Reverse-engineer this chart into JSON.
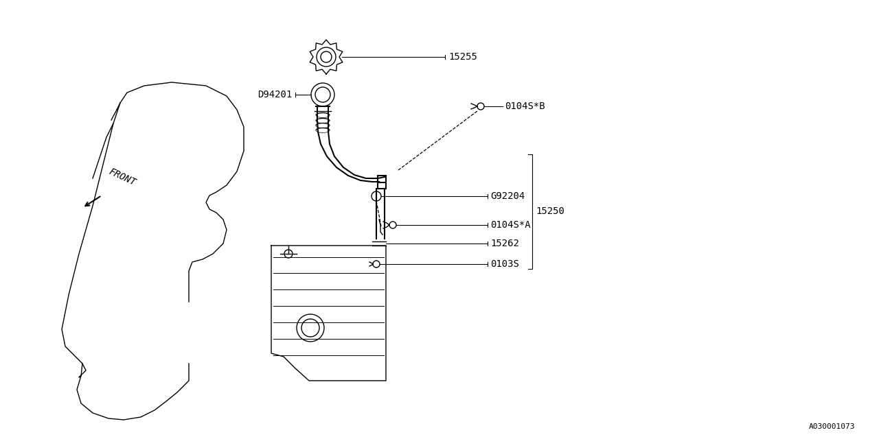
{
  "title": "",
  "background_color": "#ffffff",
  "line_color": "#000000",
  "text_color": "#000000",
  "fig_width": 12.8,
  "fig_height": 6.4,
  "diagram_id": "A030001073",
  "front_label": "FRONT",
  "parts": [
    {
      "id": "15255",
      "label": "15255"
    },
    {
      "id": "D94201",
      "label": "D94201"
    },
    {
      "id": "0104SB",
      "label": "0104S*B"
    },
    {
      "id": "G92204",
      "label": "G92204"
    },
    {
      "id": "15250",
      "label": "15250"
    },
    {
      "id": "0104SA",
      "label": "0104S*A"
    },
    {
      "id": "15262",
      "label": "15262"
    },
    {
      "id": "0103S",
      "label": "0103S"
    }
  ]
}
